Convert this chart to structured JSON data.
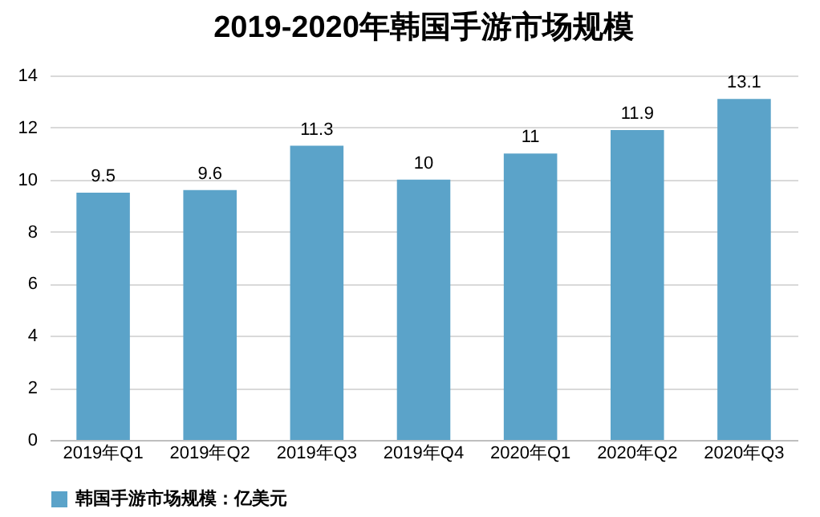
{
  "chart_data": {
    "type": "bar",
    "title": "2019-2020年韩国手游市场规模",
    "categories": [
      "2019年Q1",
      "2019年Q2",
      "2019年Q3",
      "2019年Q4",
      "2020年Q1",
      "2020年Q2",
      "2020年Q3"
    ],
    "series": [
      {
        "name": "韩国手游市场规模：亿美元",
        "color": "#5ba3c9",
        "values": [
          9.5,
          9.6,
          11.3,
          10,
          11,
          11.9,
          13.1
        ]
      }
    ],
    "ylim": [
      0,
      14
    ],
    "yticks": [
      0,
      2,
      4,
      6,
      8,
      10,
      12,
      14
    ],
    "grid": "y",
    "legend": "bottom",
    "data_labels": true
  }
}
